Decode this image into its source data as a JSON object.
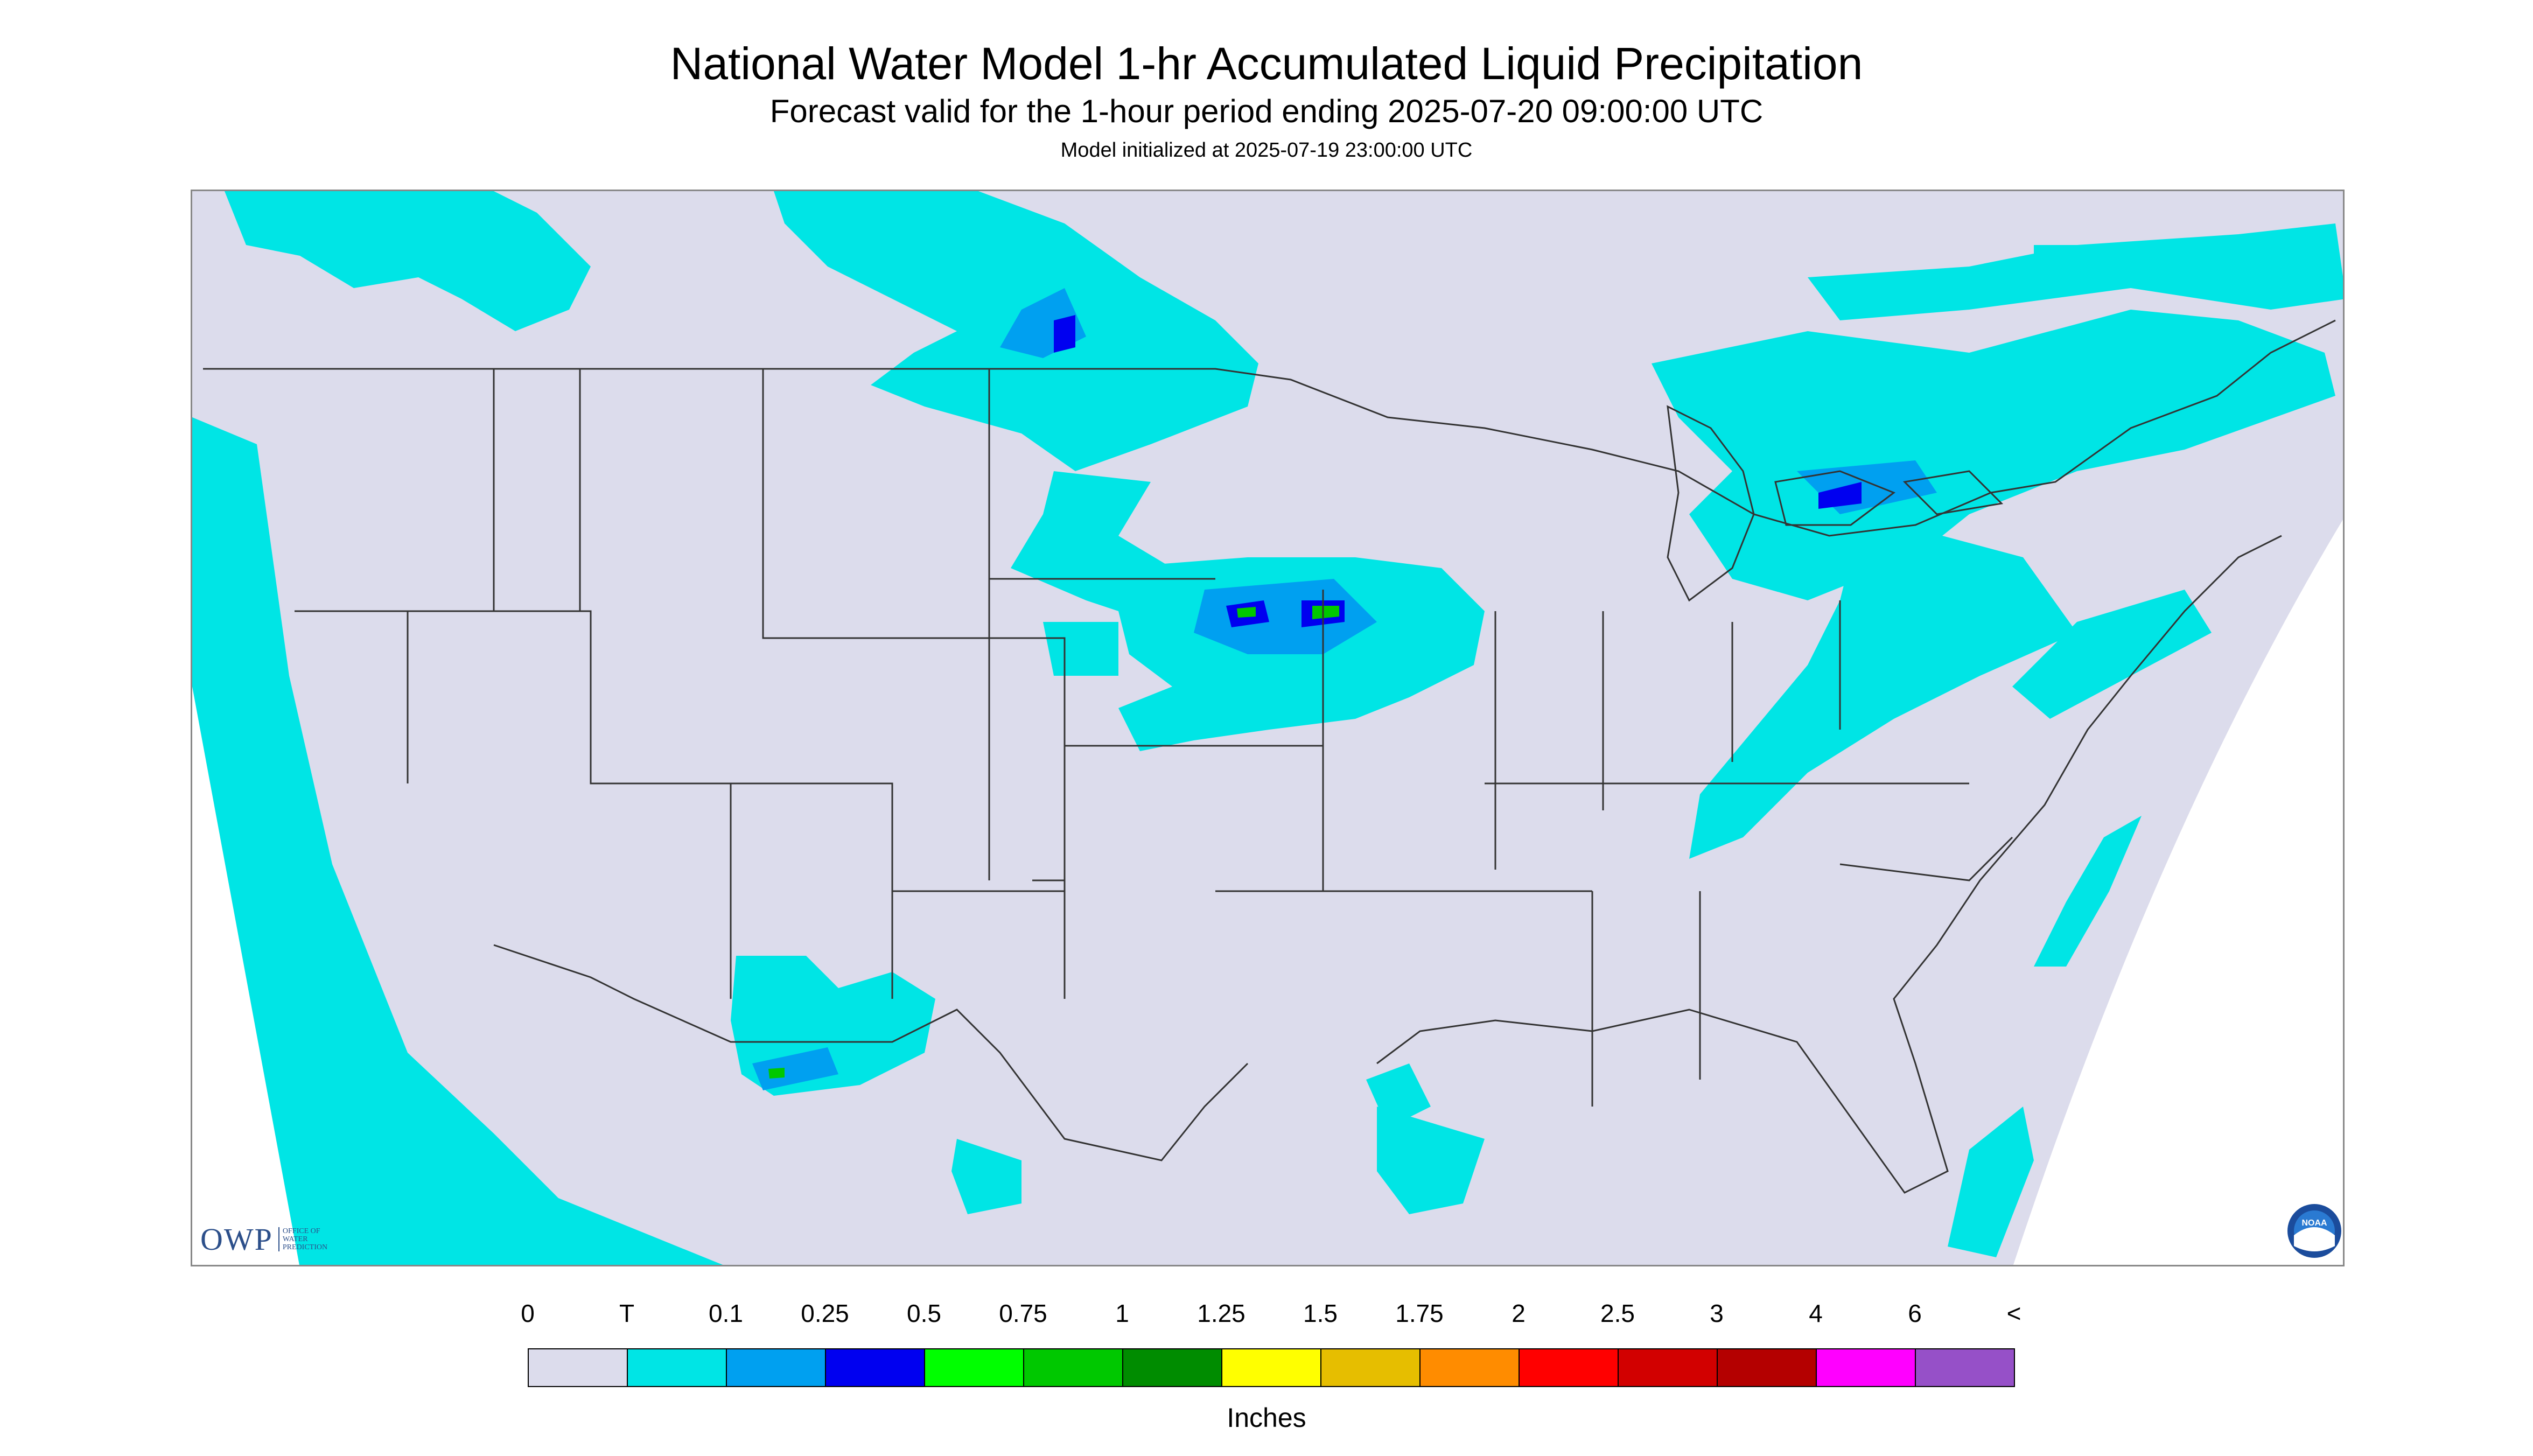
{
  "title": "National Water Model 1-hr Accumulated Liquid Precipitation",
  "subtitle": "Forecast valid for the 1-hour period ending 2025-07-20 09:00:00 UTC",
  "init_line": "Model initialized at 2025-07-19 23:00:00 UTC",
  "logos": {
    "owp_big": "OWP",
    "owp_small": "OFFICE OF WATER PREDICTION",
    "noaa": "NOAA"
  },
  "legend": {
    "labels": [
      "0",
      "T",
      "0.1",
      "0.25",
      "0.5",
      "0.75",
      "1",
      "1.25",
      "1.5",
      "1.75",
      "2",
      "2.5",
      "3",
      "4",
      "6",
      "<"
    ],
    "colors": [
      "#dcdcec",
      "#00e5e5",
      "#00a0f0",
      "#0000f0",
      "#00ff00",
      "#00c800",
      "#008c00",
      "#ffff00",
      "#e6be00",
      "#ff8c00",
      "#ff0000",
      "#d20000",
      "#b40000",
      "#ff00ff",
      "#9650c8"
    ],
    "units": "Inches"
  },
  "map_colors": {
    "background": "#dcdcec",
    "trace": "#00e5e5",
    "light": "#00a0f0",
    "moderate": "#0000f0",
    "heavy": "#00c800",
    "borders": "#333333"
  }
}
